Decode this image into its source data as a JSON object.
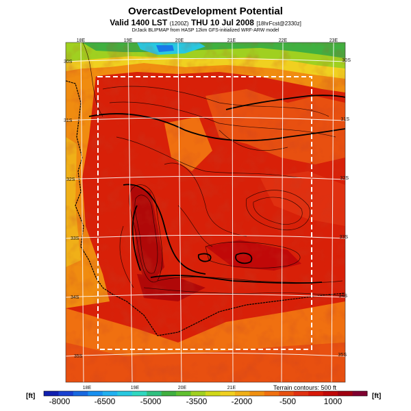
{
  "header": {
    "title": "OvercastDevelopment Potential",
    "valid_line_main": "Valid 1400 LST",
    "valid_line_zulu": "(1200Z)",
    "valid_line_date": "THU 10 Jul 2008",
    "valid_line_fcst": "[18hrFcst@2330z]",
    "credit_line": "DrJack BLIPMAP from HASP 12km GFS-initialized WRF-ARW model"
  },
  "map": {
    "longitudes_top": [
      "18E",
      "19E",
      "20E",
      "21E",
      "22E",
      "23E"
    ],
    "longitudes_bottom": [
      "18E",
      "19E",
      "20E",
      "21E"
    ],
    "latitudes_left": [
      "30S",
      "31S",
      "32S",
      "33S",
      "34S",
      "35S"
    ],
    "latitudes_right": [
      "30S",
      "31S",
      "32S",
      "33S",
      "34S",
      "35S"
    ],
    "terrain_label": "Terrain contours: 500 ft",
    "colors": {
      "frame": "#ffffff",
      "ocean_deep": "#1878e8",
      "ocean_cyan": "#28c8e0",
      "green": "#40b040",
      "yellow": "#f0d020",
      "orange": "#f08c10",
      "red_orange": "#e85010",
      "red": "#d82008",
      "dark_red": "#b00808"
    }
  },
  "colorbar": {
    "unit_left": "[ft]",
    "unit_right": "[ft]",
    "labels": [
      "-8000",
      "-6500",
      "-5000",
      "-3500",
      "-2000",
      "-500",
      "1000"
    ],
    "colors": [
      "#1020b0",
      "#1840d0",
      "#1868e0",
      "#1890f0",
      "#20b0f0",
      "#28c8e0",
      "#30d8c0",
      "#30c080",
      "#40b040",
      "#60c030",
      "#a0d020",
      "#d0d818",
      "#f0d020",
      "#f0b018",
      "#f09010",
      "#f07010",
      "#e85010",
      "#e03010",
      "#d81808",
      "#c00808",
      "#a00010",
      "#800030"
    ]
  }
}
